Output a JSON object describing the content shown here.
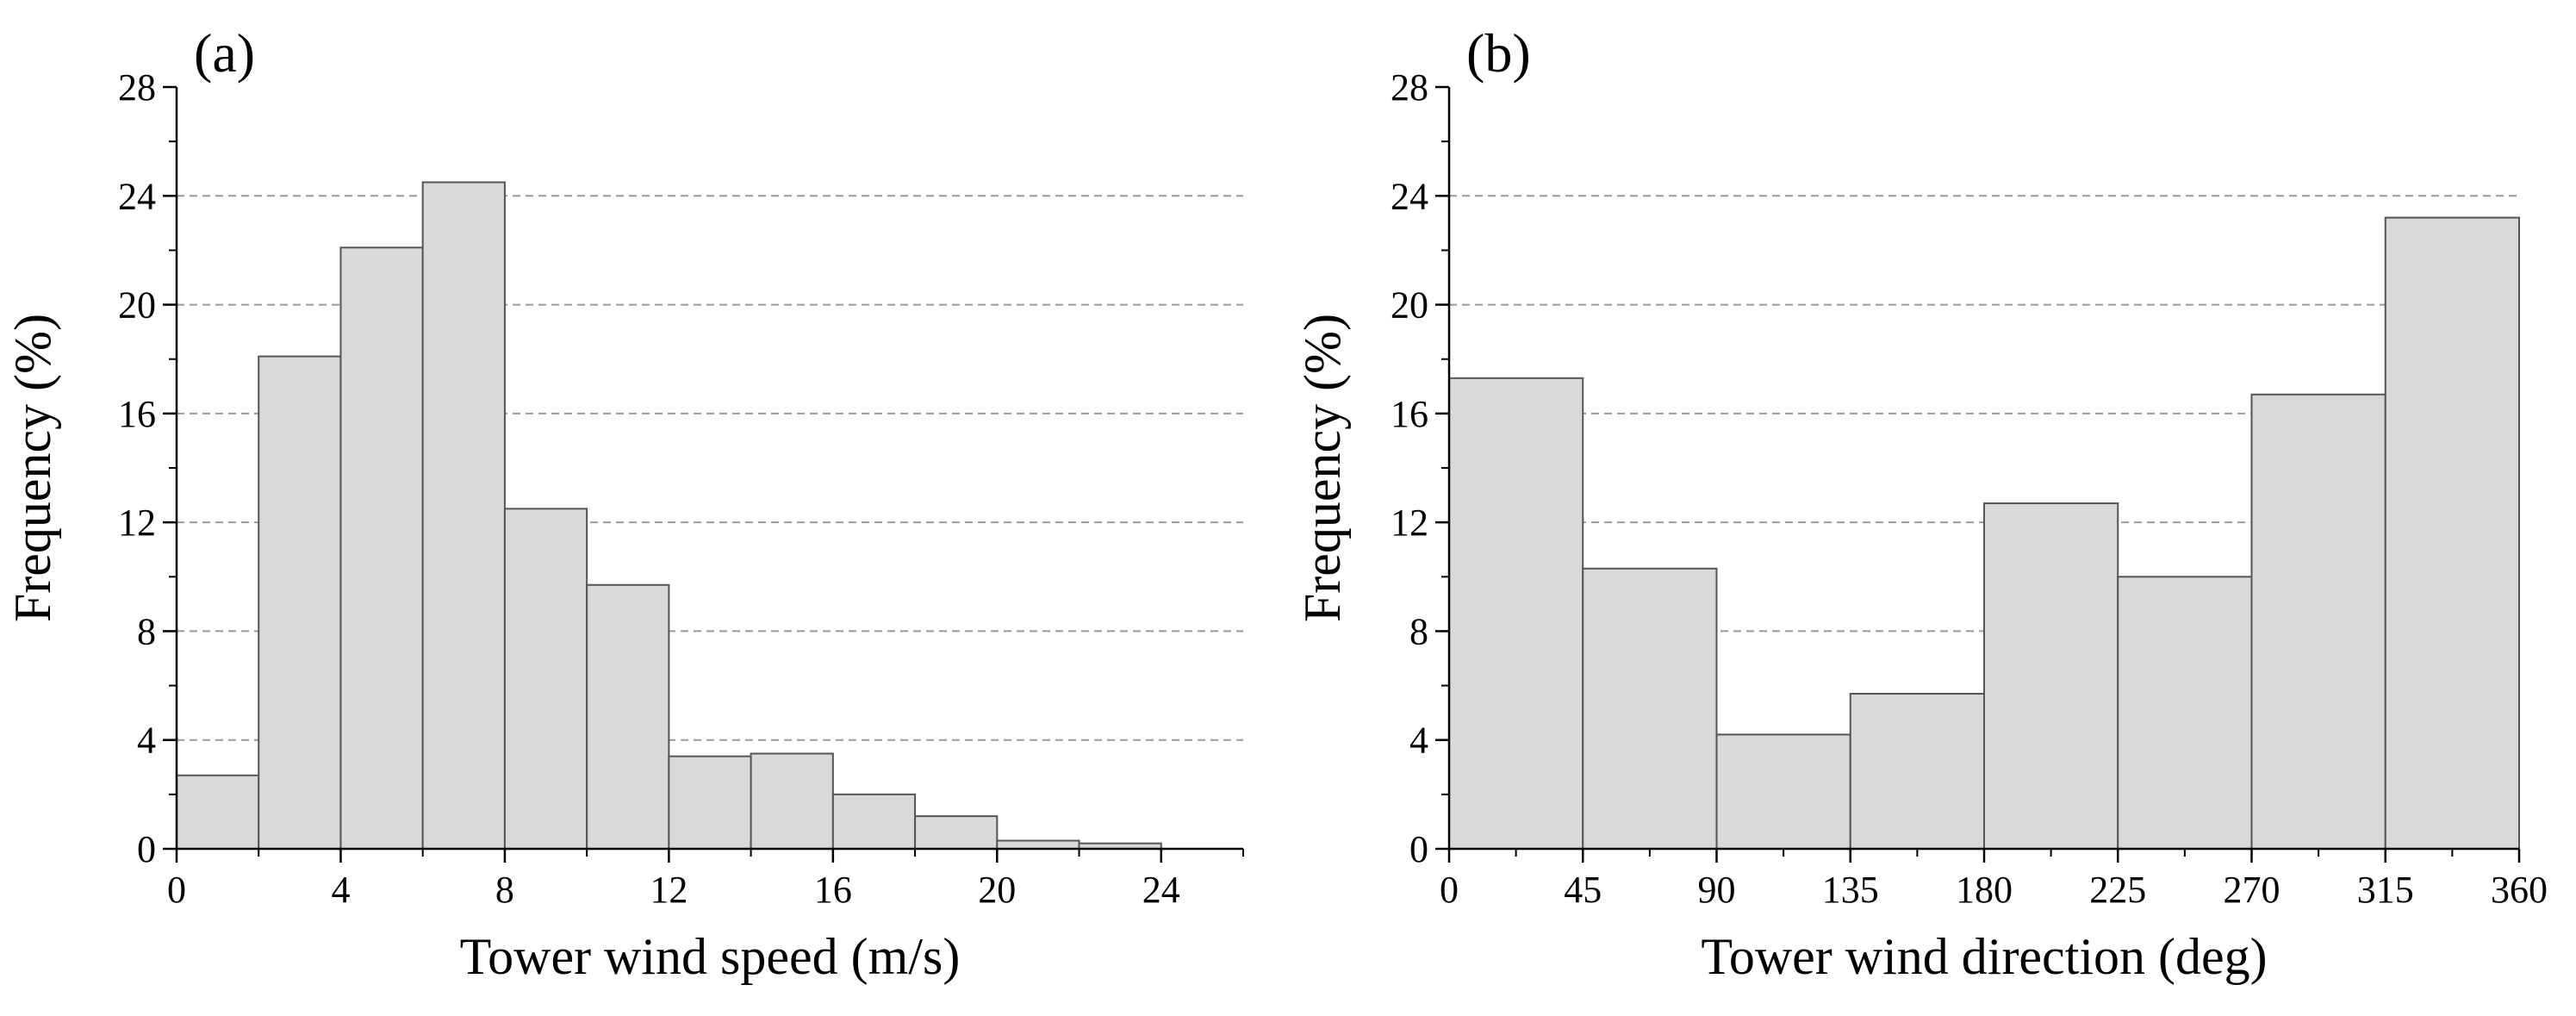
{
  "figure": {
    "background": "#ffffff",
    "bar_fill": "#d9d9d9",
    "bar_stroke": "#555555",
    "grid_color": "#9a9a9a"
  },
  "chart_data": [
    {
      "type": "bar",
      "panel_label": "(a)",
      "title": "",
      "xlabel": "Tower wind speed (m/s)",
      "ylabel": "Frequency (%)",
      "bin_edges": [
        0,
        2,
        4,
        6,
        8,
        10,
        12,
        14,
        16,
        18,
        20,
        22,
        24
      ],
      "values": [
        2.7,
        18.1,
        22.1,
        24.5,
        12.5,
        9.7,
        3.4,
        3.5,
        2.0,
        1.2,
        0.3,
        0.2
      ],
      "xlim": [
        0,
        26
      ],
      "ylim": [
        0,
        28
      ],
      "xticks": [
        0,
        4,
        8,
        12,
        16,
        20,
        24
      ],
      "xtick_labels": [
        "0",
        "4",
        "8",
        "12",
        "16",
        "20",
        "24"
      ],
      "yticks": [
        0,
        4,
        8,
        12,
        16,
        20,
        24,
        28
      ],
      "ytick_labels": [
        "0",
        "4",
        "8",
        "12",
        "16",
        "20",
        "24",
        "28"
      ],
      "grid_lines_y": [
        4,
        8,
        12,
        16,
        20,
        24
      ]
    },
    {
      "type": "bar",
      "panel_label": "(b)",
      "title": "",
      "xlabel": "Tower wind direction (deg)",
      "ylabel": "Frequency (%)",
      "bin_edges": [
        0,
        45,
        90,
        135,
        180,
        225,
        270,
        315,
        360
      ],
      "values": [
        17.3,
        10.3,
        4.2,
        5.7,
        12.7,
        10.0,
        16.7,
        23.2
      ],
      "xlim": [
        0,
        360
      ],
      "ylim": [
        0,
        28
      ],
      "xticks": [
        0,
        45,
        90,
        135,
        180,
        225,
        270,
        315,
        360
      ],
      "xtick_labels": [
        "0",
        "45",
        "90",
        "135",
        "180",
        "225",
        "270",
        "315",
        "360"
      ],
      "yticks": [
        0,
        4,
        8,
        12,
        16,
        20,
        24,
        28
      ],
      "ytick_labels": [
        "0",
        "4",
        "8",
        "12",
        "16",
        "20",
        "24",
        "28"
      ],
      "grid_lines_y": [
        4,
        8,
        12,
        16,
        20,
        24
      ]
    }
  ]
}
